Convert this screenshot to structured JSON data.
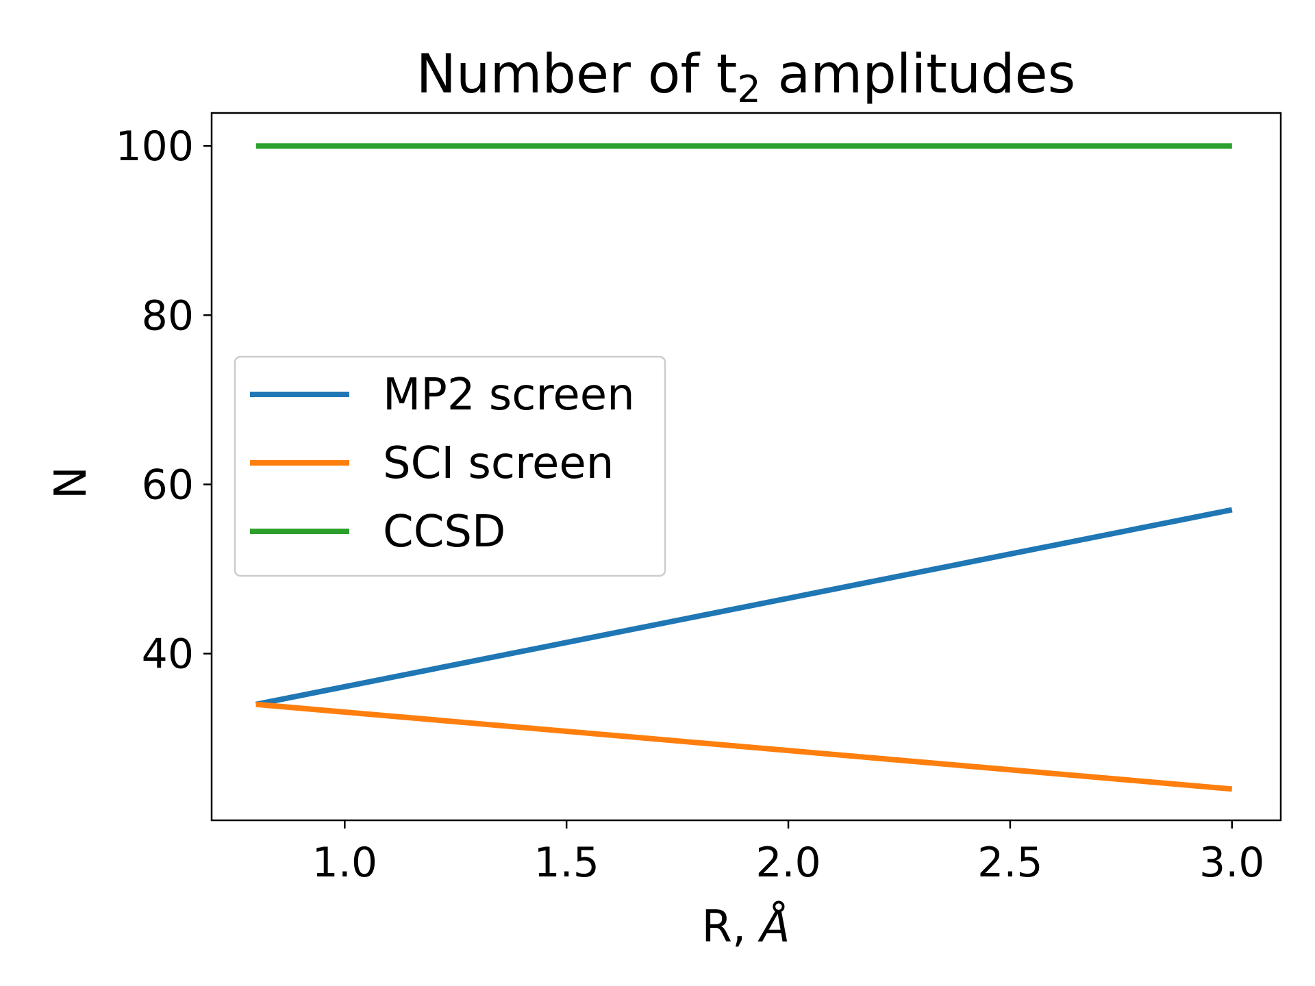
{
  "chart_data": {
    "type": "line",
    "title": "Number of t",
    "title_subscript": "2",
    "title_suffix": " amplitudes",
    "xlabel": "R, ",
    "xlabel_unit": "Å",
    "ylabel": "N",
    "xlim": [
      0.7,
      3.11
    ],
    "ylim": [
      20.3,
      103.9
    ],
    "xticks": [
      1.0,
      1.5,
      2.0,
      2.5,
      3.0
    ],
    "xtick_labels": [
      "1.0",
      "1.5",
      "2.0",
      "2.5",
      "3.0"
    ],
    "yticks": [
      40,
      60,
      80,
      100
    ],
    "ytick_labels": [
      "40",
      "60",
      "80",
      "100"
    ],
    "grid": false,
    "legend_position": "center-left",
    "series": [
      {
        "name": "MP2 screen",
        "color": "#1f77b4",
        "x": [
          0.8,
          3.0
        ],
        "y": [
          34,
          57
        ]
      },
      {
        "name": "SCI screen",
        "color": "#ff7f0e",
        "x": [
          0.8,
          3.0
        ],
        "y": [
          34,
          24
        ]
      },
      {
        "name": "CCSD",
        "color": "#2ca02c",
        "x": [
          0.8,
          3.0
        ],
        "y": [
          100,
          100
        ]
      }
    ]
  }
}
